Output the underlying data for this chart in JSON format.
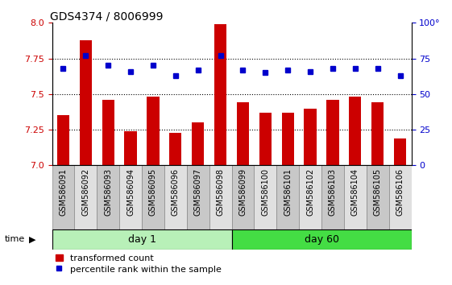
{
  "title": "GDS4374 / 8006999",
  "samples": [
    "GSM586091",
    "GSM586092",
    "GSM586093",
    "GSM586094",
    "GSM586095",
    "GSM586096",
    "GSM586097",
    "GSM586098",
    "GSM586099",
    "GSM586100",
    "GSM586101",
    "GSM586102",
    "GSM586103",
    "GSM586104",
    "GSM586105",
    "GSM586106"
  ],
  "transformed_count": [
    7.35,
    7.88,
    7.46,
    7.24,
    7.48,
    7.23,
    7.3,
    7.99,
    7.44,
    7.37,
    7.37,
    7.4,
    7.46,
    7.48,
    7.44,
    7.19
  ],
  "percentile_rank": [
    68,
    77,
    70,
    66,
    70,
    63,
    67,
    77,
    67,
    65,
    67,
    66,
    68,
    68,
    68,
    63
  ],
  "day1_count": 8,
  "day60_count": 8,
  "ylim_left": [
    7.0,
    8.0
  ],
  "ylim_right": [
    0,
    100
  ],
  "yticks_left": [
    7.0,
    7.25,
    7.5,
    7.75,
    8.0
  ],
  "yticks_right": [
    0,
    25,
    50,
    75,
    100
  ],
  "bar_color": "#cc0000",
  "dot_color": "#0000cc",
  "day1_label": "day 1",
  "day60_label": "day 60",
  "day1_color": "#b8f0b8",
  "day60_color": "#44dd44",
  "time_label": "time",
  "legend_bar_label": "transformed count",
  "legend_dot_label": "percentile rank within the sample",
  "grid_color": "black",
  "background_color": "white",
  "tick_label_size": 7,
  "title_fontsize": 10,
  "box_color_even": "#c8c8c8",
  "box_color_odd": "#e0e0e0"
}
